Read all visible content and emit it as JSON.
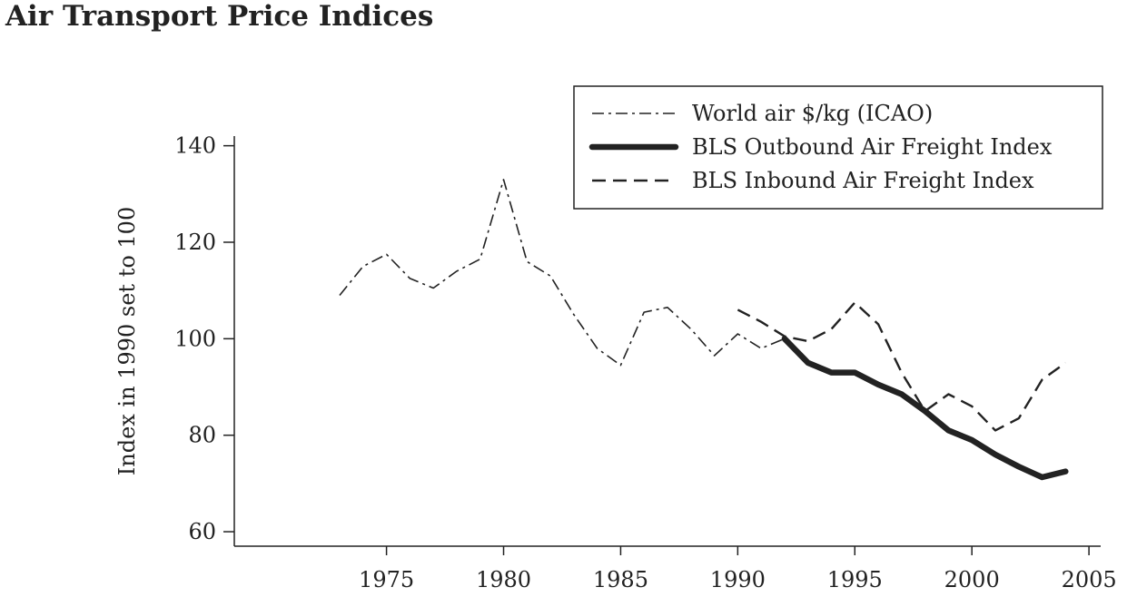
{
  "chart_data": {
    "type": "line",
    "title": "Air Transport Price Indices",
    "xlabel": "",
    "ylabel": "Index in 1990 set to 100",
    "xlim": [
      1968.5,
      2005.5
    ],
    "ylim": [
      57,
      142
    ],
    "xticks": [
      1975,
      1980,
      1985,
      1990,
      1995,
      2000,
      2005
    ],
    "yticks": [
      60,
      80,
      100,
      120,
      140
    ],
    "grid": false,
    "legend_position": "top-right",
    "series": [
      {
        "name": "World air $/kg (ICAO)",
        "style": "dashdot",
        "color": "#222222",
        "x": [
          1973,
          1974,
          1975,
          1976,
          1977,
          1978,
          1979,
          1980,
          1981,
          1982,
          1983,
          1984,
          1985,
          1986,
          1987,
          1988,
          1989,
          1990,
          1991,
          1992
        ],
        "y": [
          109,
          115,
          117.5,
          112.5,
          110.5,
          114,
          116.5,
          133,
          116,
          113,
          105,
          98,
          94.5,
          105.5,
          106.5,
          102,
          96.5,
          101,
          98,
          100
        ]
      },
      {
        "name": "BLS Outbound Air Freight Index",
        "style": "thick",
        "color": "#222222",
        "x": [
          1992,
          1993,
          1994,
          1995,
          1996,
          1997,
          1998,
          1999,
          2000,
          2001,
          2002,
          2003,
          2004
        ],
        "y": [
          100,
          95,
          93,
          93,
          90.5,
          88.5,
          85,
          81,
          79,
          76,
          73.5,
          71.3,
          72.5
        ]
      },
      {
        "name": "BLS Inbound Air Freight Index",
        "style": "dashed",
        "color": "#222222",
        "x": [
          1990,
          1991,
          1992,
          1993,
          1994,
          1995,
          1996,
          1997,
          1998,
          1999,
          2000,
          2001,
          2002,
          2003,
          2004
        ],
        "y": [
          106,
          103.5,
          100.5,
          99.5,
          102,
          107.5,
          103,
          93,
          85,
          88.5,
          86,
          81,
          83.5,
          91.5,
          95
        ]
      }
    ]
  }
}
